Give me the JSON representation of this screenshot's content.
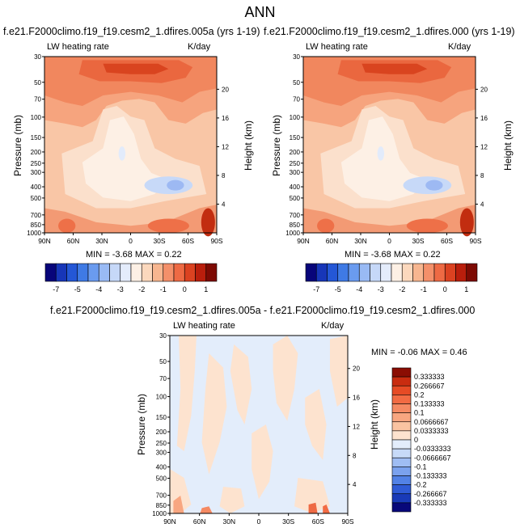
{
  "title": "ANN",
  "panels": [
    {
      "id": "p1",
      "subtitle": "f.e21.F2000climo.f19_f19.cesm2_1.dfires.005a (yrs 1-19)",
      "left_label": "LW heating rate",
      "right_label": "K/day",
      "ylabel": "Pressure (mb)",
      "y2label": "Height (km)",
      "minmax": "MIN = -3.68   MAX =  0.22"
    },
    {
      "id": "p2",
      "subtitle": "f.e21.F2000climo.f19_f19.cesm2_1.dfires.000 (yrs 1-19)",
      "left_label": "LW heating rate",
      "right_label": "K/day",
      "ylabel": "Pressure (mb)",
      "y2label": "Height (km)",
      "minmax": "MIN = -3.68   MAX =  0.22"
    },
    {
      "id": "p3",
      "subtitle": "f.e21.F2000climo.f19_f19.cesm2_1.dfires.005a - f.e21.F2000climo.f19_f19.cesm2_1.dfires.000",
      "left_label": "LW heating rate",
      "right_label": "K/day",
      "ylabel": "Pressure (mb)",
      "y2label": "Height (km)",
      "minmax": "MIN =  -0.06   MAX =   0.46"
    }
  ],
  "colorbar_top": {
    "labels": [
      "-7",
      "-5",
      "-4",
      "-3",
      "-2",
      "-1",
      "0",
      "1"
    ],
    "colors": [
      "#08057a",
      "#1736b8",
      "#2457d6",
      "#3f7ae5",
      "#6a9bef",
      "#99baf4",
      "#c6d8f8",
      "#e4ecfb",
      "#fdf0e5",
      "#fbd8bd",
      "#f7b690",
      "#f4906a",
      "#ee6a44",
      "#db4221",
      "#b91e0c",
      "#7d0a03"
    ]
  },
  "colorbar_diff": {
    "labels": [
      "0.333333",
      "0.266667",
      "0.2",
      "0.133333",
      "0.1",
      "0.0666667",
      "0.0333333",
      "0",
      "-0.0333333",
      "-0.0666667",
      "-0.1",
      "-0.133333",
      "-0.2",
      "-0.266667",
      "-0.333333"
    ],
    "colors": [
      "#8b0d03",
      "#c92c10",
      "#e64b25",
      "#f26b43",
      "#f58a63",
      "#f8a680",
      "#fac3a1",
      "#fde3cf",
      "#e3edfb",
      "#c7daf8",
      "#9fbdf3",
      "#7ba2ee",
      "#5282e6",
      "#2f5bd6",
      "#193ab8",
      "#08087a"
    ]
  },
  "chart_data": [
    {
      "type": "heatmap",
      "title": "LW heating rate",
      "units": "K/day",
      "x_ticks": [
        "90N",
        "60N",
        "30N",
        "0",
        "30S",
        "60S",
        "90S"
      ],
      "x_values": [
        90,
        60,
        30,
        0,
        -30,
        -60,
        -90
      ],
      "y_ticks": [
        "30",
        "50",
        "70",
        "100",
        "150",
        "200",
        "250",
        "300",
        "400",
        "500",
        "700",
        "850",
        "1000"
      ],
      "y_values": [
        30,
        50,
        70,
        100,
        150,
        200,
        250,
        300,
        400,
        500,
        700,
        850,
        1000
      ],
      "y2_ticks": [
        "20",
        "16",
        "12",
        "8",
        "4"
      ],
      "y2_values": [
        20,
        16,
        12,
        8,
        4
      ],
      "ylabel": "Pressure (mb)",
      "y2label": "Height (km)",
      "min": -3.68,
      "max": 0.22
    },
    {
      "type": "heatmap",
      "title": "LW heating rate",
      "units": "K/day",
      "x_ticks": [
        "90N",
        "60N",
        "30N",
        "0",
        "30S",
        "60S",
        "90S"
      ],
      "x_values": [
        90,
        60,
        30,
        0,
        -30,
        -60,
        -90
      ],
      "y_ticks": [
        "30",
        "50",
        "70",
        "100",
        "150",
        "200",
        "250",
        "300",
        "400",
        "500",
        "700",
        "850",
        "1000"
      ],
      "y_values": [
        30,
        50,
        70,
        100,
        150,
        200,
        250,
        300,
        400,
        500,
        700,
        850,
        1000
      ],
      "y2_ticks": [
        "20",
        "16",
        "12",
        "8",
        "4"
      ],
      "y2_values": [
        20,
        16,
        12,
        8,
        4
      ],
      "ylabel": "Pressure (mb)",
      "y2label": "Height (km)",
      "min": -3.68,
      "max": 0.22
    },
    {
      "type": "heatmap",
      "title": "LW heating rate",
      "units": "K/day",
      "x_ticks": [
        "90N",
        "60N",
        "30N",
        "0",
        "30S",
        "60S",
        "90S"
      ],
      "x_values": [
        90,
        60,
        30,
        0,
        -30,
        -60,
        -90
      ],
      "y_ticks": [
        "30",
        "50",
        "70",
        "100",
        "150",
        "200",
        "250",
        "300",
        "400",
        "500",
        "700",
        "850",
        "1000"
      ],
      "y_values": [
        30,
        50,
        70,
        100,
        150,
        200,
        250,
        300,
        400,
        500,
        700,
        850,
        1000
      ],
      "y2_ticks": [
        "20",
        "16",
        "12",
        "8",
        "4"
      ],
      "y2_values": [
        20,
        16,
        12,
        8,
        4
      ],
      "ylabel": "Pressure (mb)",
      "y2label": "Height (km)",
      "min": -0.06,
      "max": 0.46
    }
  ]
}
